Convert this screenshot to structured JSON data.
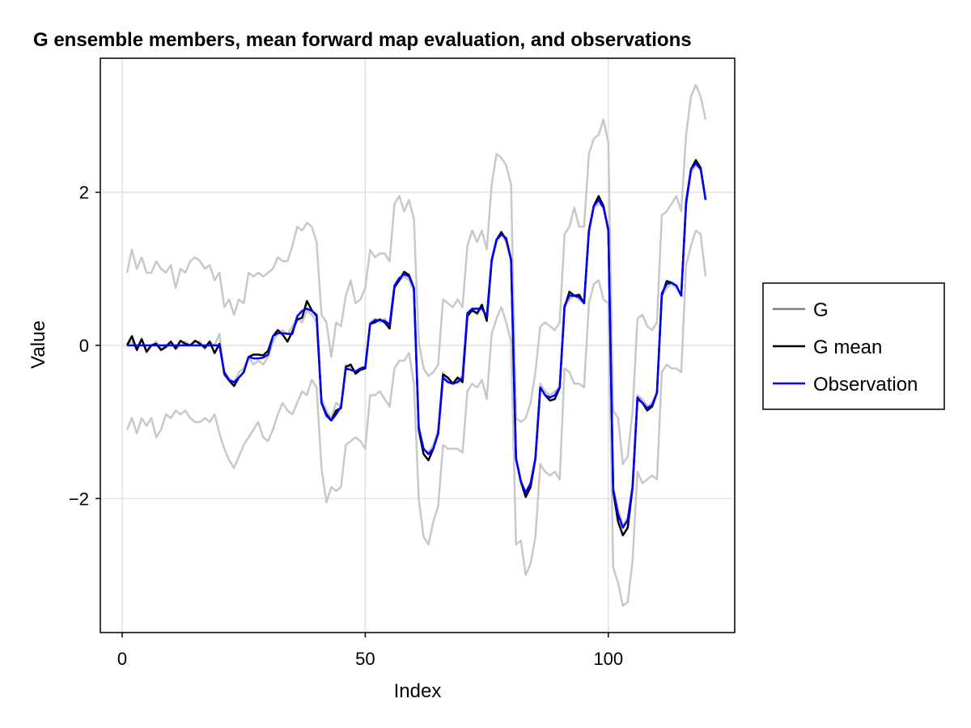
{
  "chart_data": {
    "type": "line",
    "title": "G ensemble members, mean forward map evaluation, and observations",
    "xlabel": "Index",
    "ylabel": "Value",
    "xlim": [
      -4.5,
      126
    ],
    "ylim": [
      -3.75,
      3.75
    ],
    "xticks": [
      0,
      50,
      100
    ],
    "xtick_labels": [
      "0",
      "50",
      "100"
    ],
    "yticks": [
      -2,
      0,
      2
    ],
    "ytick_labels": [
      "−2",
      "0",
      "2"
    ],
    "grid": true,
    "legend": {
      "position": "right",
      "entries": [
        "G",
        "G mean",
        "Observation"
      ]
    },
    "colors": {
      "G": "#c8c8c8",
      "G_legend": "#7f7f7f",
      "G mean": "#000000",
      "Observation": "#0000ff"
    },
    "x": [
      1,
      2,
      3,
      4,
      5,
      6,
      7,
      8,
      9,
      10,
      11,
      12,
      13,
      14,
      15,
      16,
      17,
      18,
      19,
      20,
      21,
      22,
      23,
      24,
      25,
      26,
      27,
      28,
      29,
      30,
      31,
      32,
      33,
      34,
      35,
      36,
      37,
      38,
      39,
      40,
      41,
      42,
      43,
      44,
      45,
      46,
      47,
      48,
      49,
      50,
      51,
      52,
      53,
      54,
      55,
      56,
      57,
      58,
      59,
      60,
      61,
      62,
      63,
      64,
      65,
      66,
      67,
      68,
      69,
      70,
      71,
      72,
      73,
      74,
      75,
      76,
      77,
      78,
      79,
      80,
      81,
      82,
      83,
      84,
      85,
      86,
      87,
      88,
      89,
      90,
      91,
      92,
      93,
      94,
      95,
      96,
      97,
      98,
      99,
      100,
      101,
      102,
      103,
      104,
      105,
      106,
      107,
      108,
      109,
      110,
      111,
      112,
      113,
      114,
      115,
      116,
      117,
      118,
      119,
      120
    ],
    "series": [
      {
        "name": "G",
        "role": "member",
        "values": [
          0.95,
          1.25,
          1.0,
          1.15,
          0.95,
          0.95,
          1.1,
          1.0,
          0.95,
          1.05,
          0.75,
          1.0,
          0.95,
          1.1,
          1.15,
          1.1,
          1.0,
          1.05,
          0.85,
          0.95,
          0.5,
          0.6,
          0.4,
          0.6,
          0.55,
          0.95,
          0.9,
          0.95,
          0.9,
          0.95,
          1.0,
          1.15,
          1.1,
          1.1,
          1.3,
          1.55,
          1.5,
          1.6,
          1.55,
          1.35,
          0.4,
          0.3,
          -0.15,
          0.3,
          0.25,
          0.65,
          0.85,
          0.55,
          0.6,
          0.75,
          1.25,
          1.15,
          1.2,
          1.2,
          1.1,
          1.85,
          1.95,
          1.75,
          1.9,
          1.65,
          0.05,
          -0.3,
          -0.4,
          -0.35,
          -0.25,
          0.6,
          0.55,
          0.5,
          0.6,
          0.5,
          1.3,
          1.5,
          1.35,
          1.5,
          1.25,
          2.1,
          2.5,
          2.45,
          2.35,
          2.1,
          -0.95,
          -1.0,
          -0.95,
          -0.75,
          -0.35,
          0.25,
          0.3,
          0.25,
          0.2,
          0.3,
          1.45,
          1.55,
          1.8,
          1.55,
          1.55,
          2.5,
          2.7,
          2.75,
          2.95,
          2.65,
          -0.85,
          -0.95,
          -1.55,
          -1.45,
          -0.85,
          0.35,
          0.4,
          0.25,
          0.2,
          0.3,
          1.7,
          1.75,
          1.85,
          1.95,
          1.75,
          2.75,
          3.25,
          3.4,
          3.25,
          2.95
        ]
      },
      {
        "name": "G",
        "role": "member",
        "values": [
          -1.1,
          -0.95,
          -1.15,
          -0.95,
          -1.05,
          -0.95,
          -1.2,
          -1.1,
          -0.9,
          -0.95,
          -0.85,
          -0.9,
          -0.85,
          -0.95,
          -1.0,
          -1.0,
          -0.95,
          -1.0,
          -0.9,
          -1.15,
          -1.35,
          -1.5,
          -1.6,
          -1.45,
          -1.3,
          -1.2,
          -1.1,
          -1.0,
          -1.2,
          -1.25,
          -1.1,
          -0.9,
          -0.75,
          -0.85,
          -0.9,
          -0.75,
          -0.6,
          -0.65,
          -0.45,
          -0.55,
          -1.6,
          -2.05,
          -1.85,
          -1.9,
          -1.85,
          -1.3,
          -1.25,
          -1.2,
          -1.25,
          -1.35,
          -0.65,
          -0.65,
          -0.6,
          -0.7,
          -0.8,
          -0.3,
          -0.2,
          -0.2,
          -0.1,
          -0.5,
          -2.0,
          -2.5,
          -2.6,
          -2.3,
          -2.1,
          -1.3,
          -1.35,
          -1.35,
          -1.35,
          -1.4,
          -0.6,
          -0.5,
          -0.55,
          -0.45,
          -0.7,
          0.15,
          0.35,
          0.5,
          0.3,
          0.05,
          -2.6,
          -2.55,
          -3.0,
          -2.85,
          -2.5,
          -1.55,
          -1.65,
          -1.7,
          -1.65,
          -1.75,
          -0.3,
          -0.35,
          -0.5,
          -0.5,
          -0.55,
          0.55,
          0.8,
          0.85,
          0.6,
          0.55,
          -2.9,
          -3.1,
          -3.4,
          -3.35,
          -2.8,
          -1.65,
          -1.8,
          -1.75,
          -1.7,
          -1.75,
          -0.35,
          -0.25,
          -0.3,
          -0.3,
          -0.35,
          1.05,
          1.3,
          1.5,
          1.45,
          0.9
        ]
      },
      {
        "name": "G",
        "role": "member",
        "values": [
          0.0,
          0.05,
          -0.05,
          0.1,
          -0.1,
          0.0,
          0.05,
          -0.05,
          0.0,
          0.05,
          -0.05,
          0.0,
          0.05,
          0.0,
          0.05,
          0.05,
          -0.05,
          0.05,
          0.0,
          0.15,
          -0.4,
          -0.45,
          -0.5,
          -0.35,
          -0.3,
          -0.15,
          -0.25,
          -0.2,
          -0.25,
          -0.15,
          0.05,
          0.15,
          0.2,
          0.15,
          0.25,
          0.35,
          0.3,
          0.45,
          0.4,
          0.3,
          -0.7,
          -0.85,
          -0.95,
          -0.75,
          -0.8,
          -0.25,
          -0.3,
          -0.35,
          -0.3,
          -0.3,
          0.3,
          0.35,
          0.3,
          0.35,
          0.25,
          0.75,
          0.85,
          0.9,
          0.85,
          0.7,
          -1.05,
          -1.35,
          -1.4,
          -1.3,
          -1.1,
          -0.35,
          -0.45,
          -0.5,
          -0.45,
          -0.4,
          0.4,
          0.45,
          0.4,
          0.5,
          0.35,
          1.1,
          1.35,
          1.45,
          1.35,
          1.1,
          -1.45,
          -1.75,
          -1.95,
          -1.8,
          -1.45,
          -0.5,
          -0.6,
          -0.65,
          -0.6,
          -0.55,
          0.5,
          0.6,
          0.65,
          0.6,
          0.55,
          1.45,
          1.8,
          1.85,
          1.8,
          1.5,
          -1.85,
          -2.15,
          -2.35,
          -2.25,
          -1.8,
          -0.65,
          -0.7,
          -0.8,
          -0.75,
          -0.6,
          0.65,
          0.75,
          0.8,
          0.75,
          0.65,
          1.85,
          2.25,
          2.35,
          2.3,
          1.9
        ]
      },
      {
        "name": "G mean",
        "role": "mean",
        "values": [
          0.0,
          0.12,
          -0.06,
          0.08,
          -0.08,
          0.0,
          0.02,
          -0.06,
          -0.02,
          0.05,
          -0.04,
          0.06,
          0.02,
          0.0,
          0.06,
          0.02,
          -0.03,
          0.05,
          -0.1,
          0.02,
          -0.37,
          -0.46,
          -0.53,
          -0.42,
          -0.35,
          -0.15,
          -0.12,
          -0.12,
          -0.13,
          -0.07,
          0.12,
          0.2,
          0.14,
          0.05,
          0.18,
          0.34,
          0.36,
          0.58,
          0.46,
          0.38,
          -0.75,
          -0.9,
          -0.98,
          -0.85,
          -0.82,
          -0.28,
          -0.25,
          -0.37,
          -0.32,
          -0.3,
          0.28,
          0.3,
          0.34,
          0.3,
          0.22,
          0.76,
          0.85,
          0.96,
          0.92,
          0.75,
          -1.1,
          -1.42,
          -1.5,
          -1.35,
          -1.15,
          -0.38,
          -0.42,
          -0.5,
          -0.42,
          -0.48,
          0.38,
          0.46,
          0.42,
          0.53,
          0.32,
          1.1,
          1.38,
          1.48,
          1.38,
          1.12,
          -1.48,
          -1.78,
          -1.98,
          -1.85,
          -1.48,
          -0.55,
          -0.65,
          -0.72,
          -0.7,
          -0.55,
          0.5,
          0.7,
          0.65,
          0.66,
          0.55,
          1.5,
          1.82,
          1.95,
          1.82,
          1.5,
          -1.9,
          -2.3,
          -2.48,
          -2.38,
          -1.85,
          -0.7,
          -0.75,
          -0.85,
          -0.8,
          -0.62,
          0.65,
          0.84,
          0.82,
          0.78,
          0.65,
          1.85,
          2.3,
          2.42,
          2.32,
          1.9
        ]
      },
      {
        "name": "Observation",
        "role": "observation",
        "values": [
          0.0,
          0.0,
          0.0,
          0.0,
          0.0,
          0.0,
          0.0,
          0.0,
          0.0,
          0.0,
          0.0,
          0.0,
          0.0,
          0.0,
          0.0,
          0.0,
          0.0,
          0.0,
          0.0,
          0.0,
          -0.35,
          -0.45,
          -0.48,
          -0.42,
          -0.35,
          -0.15,
          -0.17,
          -0.17,
          -0.16,
          -0.12,
          0.12,
          0.16,
          0.16,
          0.15,
          0.15,
          0.38,
          0.45,
          0.48,
          0.45,
          0.4,
          -0.75,
          -0.92,
          -0.98,
          -0.9,
          -0.8,
          -0.3,
          -0.32,
          -0.34,
          -0.3,
          -0.28,
          0.28,
          0.33,
          0.33,
          0.32,
          0.27,
          0.78,
          0.88,
          0.93,
          0.9,
          0.75,
          -1.08,
          -1.35,
          -1.42,
          -1.35,
          -1.15,
          -0.42,
          -0.48,
          -0.5,
          -0.48,
          -0.42,
          0.42,
          0.48,
          0.48,
          0.48,
          0.38,
          1.12,
          1.38,
          1.45,
          1.4,
          1.12,
          -1.48,
          -1.78,
          -1.92,
          -1.8,
          -1.48,
          -0.55,
          -0.65,
          -0.68,
          -0.65,
          -0.55,
          0.52,
          0.65,
          0.65,
          0.63,
          0.55,
          1.5,
          1.82,
          1.9,
          1.8,
          1.52,
          -1.88,
          -2.2,
          -2.38,
          -2.28,
          -1.85,
          -0.68,
          -0.75,
          -0.82,
          -0.78,
          -0.62,
          0.68,
          0.8,
          0.82,
          0.78,
          0.65,
          1.88,
          2.3,
          2.38,
          2.3,
          1.9
        ]
      }
    ]
  }
}
